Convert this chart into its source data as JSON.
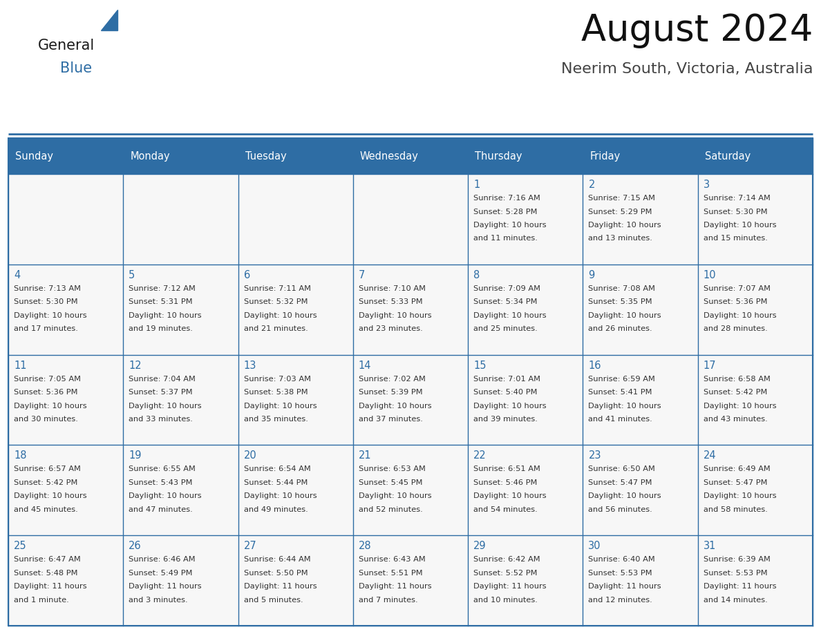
{
  "title": "August 2024",
  "subtitle": "Neerim South, Victoria, Australia",
  "header_bg": "#2E6DA4",
  "header_text_color": "#FFFFFF",
  "cell_bg": "#F5F5F5",
  "border_color": "#2E6DA4",
  "border_color_light": "#AAAAAA",
  "days_of_week": [
    "Sunday",
    "Monday",
    "Tuesday",
    "Wednesday",
    "Thursday",
    "Friday",
    "Saturday"
  ],
  "text_color": "#333333",
  "day_num_color": "#2E6DA4",
  "title_color": "#111111",
  "subtitle_color": "#444444",
  "calendar_data": [
    [
      {
        "day": "",
        "sunrise": "",
        "sunset": "",
        "daylight": ""
      },
      {
        "day": "",
        "sunrise": "",
        "sunset": "",
        "daylight": ""
      },
      {
        "day": "",
        "sunrise": "",
        "sunset": "",
        "daylight": ""
      },
      {
        "day": "",
        "sunrise": "",
        "sunset": "",
        "daylight": ""
      },
      {
        "day": "1",
        "sunrise": "7:16 AM",
        "sunset": "5:28 PM",
        "daylight": "10 hours and 11 minutes."
      },
      {
        "day": "2",
        "sunrise": "7:15 AM",
        "sunset": "5:29 PM",
        "daylight": "10 hours and 13 minutes."
      },
      {
        "day": "3",
        "sunrise": "7:14 AM",
        "sunset": "5:30 PM",
        "daylight": "10 hours and 15 minutes."
      }
    ],
    [
      {
        "day": "4",
        "sunrise": "7:13 AM",
        "sunset": "5:30 PM",
        "daylight": "10 hours and 17 minutes."
      },
      {
        "day": "5",
        "sunrise": "7:12 AM",
        "sunset": "5:31 PM",
        "daylight": "10 hours and 19 minutes."
      },
      {
        "day": "6",
        "sunrise": "7:11 AM",
        "sunset": "5:32 PM",
        "daylight": "10 hours and 21 minutes."
      },
      {
        "day": "7",
        "sunrise": "7:10 AM",
        "sunset": "5:33 PM",
        "daylight": "10 hours and 23 minutes."
      },
      {
        "day": "8",
        "sunrise": "7:09 AM",
        "sunset": "5:34 PM",
        "daylight": "10 hours and 25 minutes."
      },
      {
        "day": "9",
        "sunrise": "7:08 AM",
        "sunset": "5:35 PM",
        "daylight": "10 hours and 26 minutes."
      },
      {
        "day": "10",
        "sunrise": "7:07 AM",
        "sunset": "5:36 PM",
        "daylight": "10 hours and 28 minutes."
      }
    ],
    [
      {
        "day": "11",
        "sunrise": "7:05 AM",
        "sunset": "5:36 PM",
        "daylight": "10 hours and 30 minutes."
      },
      {
        "day": "12",
        "sunrise": "7:04 AM",
        "sunset": "5:37 PM",
        "daylight": "10 hours and 33 minutes."
      },
      {
        "day": "13",
        "sunrise": "7:03 AM",
        "sunset": "5:38 PM",
        "daylight": "10 hours and 35 minutes."
      },
      {
        "day": "14",
        "sunrise": "7:02 AM",
        "sunset": "5:39 PM",
        "daylight": "10 hours and 37 minutes."
      },
      {
        "day": "15",
        "sunrise": "7:01 AM",
        "sunset": "5:40 PM",
        "daylight": "10 hours and 39 minutes."
      },
      {
        "day": "16",
        "sunrise": "6:59 AM",
        "sunset": "5:41 PM",
        "daylight": "10 hours and 41 minutes."
      },
      {
        "day": "17",
        "sunrise": "6:58 AM",
        "sunset": "5:42 PM",
        "daylight": "10 hours and 43 minutes."
      }
    ],
    [
      {
        "day": "18",
        "sunrise": "6:57 AM",
        "sunset": "5:42 PM",
        "daylight": "10 hours and 45 minutes."
      },
      {
        "day": "19",
        "sunrise": "6:55 AM",
        "sunset": "5:43 PM",
        "daylight": "10 hours and 47 minutes."
      },
      {
        "day": "20",
        "sunrise": "6:54 AM",
        "sunset": "5:44 PM",
        "daylight": "10 hours and 49 minutes."
      },
      {
        "day": "21",
        "sunrise": "6:53 AM",
        "sunset": "5:45 PM",
        "daylight": "10 hours and 52 minutes."
      },
      {
        "day": "22",
        "sunrise": "6:51 AM",
        "sunset": "5:46 PM",
        "daylight": "10 hours and 54 minutes."
      },
      {
        "day": "23",
        "sunrise": "6:50 AM",
        "sunset": "5:47 PM",
        "daylight": "10 hours and 56 minutes."
      },
      {
        "day": "24",
        "sunrise": "6:49 AM",
        "sunset": "5:47 PM",
        "daylight": "10 hours and 58 minutes."
      }
    ],
    [
      {
        "day": "25",
        "sunrise": "6:47 AM",
        "sunset": "5:48 PM",
        "daylight": "11 hours and 1 minute."
      },
      {
        "day": "26",
        "sunrise": "6:46 AM",
        "sunset": "5:49 PM",
        "daylight": "11 hours and 3 minutes."
      },
      {
        "day": "27",
        "sunrise": "6:44 AM",
        "sunset": "5:50 PM",
        "daylight": "11 hours and 5 minutes."
      },
      {
        "day": "28",
        "sunrise": "6:43 AM",
        "sunset": "5:51 PM",
        "daylight": "11 hours and 7 minutes."
      },
      {
        "day": "29",
        "sunrise": "6:42 AM",
        "sunset": "5:52 PM",
        "daylight": "11 hours and 10 minutes."
      },
      {
        "day": "30",
        "sunrise": "6:40 AM",
        "sunset": "5:53 PM",
        "daylight": "11 hours and 12 minutes."
      },
      {
        "day": "31",
        "sunrise": "6:39 AM",
        "sunset": "5:53 PM",
        "daylight": "11 hours and 14 minutes."
      }
    ]
  ]
}
